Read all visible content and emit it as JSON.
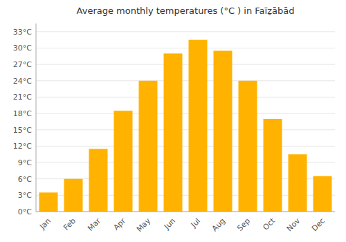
{
  "chart_data": {
    "type": "bar",
    "title": "Average monthly temperatures (°C ) in Faīẕābād",
    "categories": [
      "Jan",
      "Feb",
      "Mar",
      "Apr",
      "May",
      "Jun",
      "Jul",
      "Aug",
      "Sep",
      "Oct",
      "Nov",
      "Dec"
    ],
    "values": [
      3.5,
      6.0,
      11.5,
      18.5,
      24.0,
      29.0,
      31.5,
      29.5,
      24.0,
      17.0,
      10.5,
      6.5
    ],
    "color": "#FFB300",
    "ylim": [
      0,
      34.5
    ],
    "yticks": [
      {
        "value": 0,
        "label": "0°C"
      },
      {
        "value": 3,
        "label": "3°C"
      },
      {
        "value": 6,
        "label": "6°C"
      },
      {
        "value": 9,
        "label": "9°C"
      },
      {
        "value": 12,
        "label": "12°C"
      },
      {
        "value": 15,
        "label": "15°C"
      },
      {
        "value": 18,
        "label": "18°C"
      },
      {
        "value": 21,
        "label": "21°C"
      },
      {
        "value": 24,
        "label": "24°C"
      },
      {
        "value": 27,
        "label": "27°C"
      },
      {
        "value": 30,
        "label": "30°C"
      },
      {
        "value": 33,
        "label": "33°C"
      }
    ],
    "grid": true
  }
}
